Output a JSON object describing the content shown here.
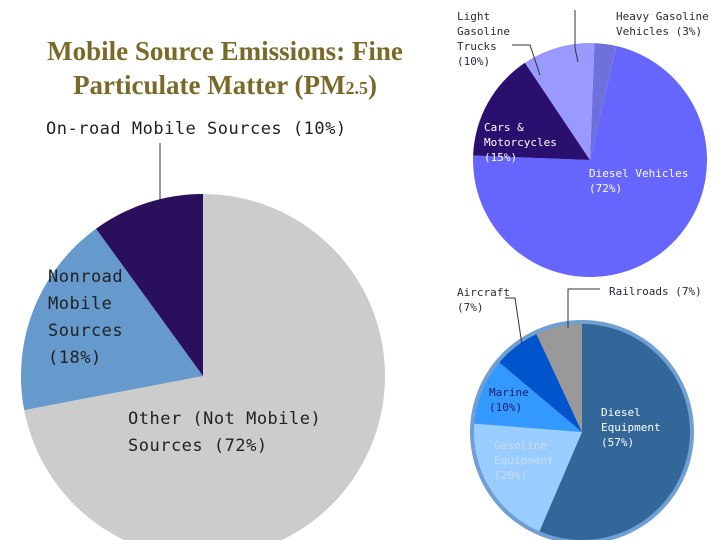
{
  "title": {
    "line1": "Mobile Source Emissions: Fine",
    "line2": "Particulate Matter (PM",
    "sub": "2.5",
    "close": ")"
  },
  "chart_data": [
    {
      "type": "pie",
      "title": "",
      "slices": [
        {
          "label": "On-road Mobile Sources (10%)",
          "value": 10,
          "color": "#2a0f5c"
        },
        {
          "label": "Nonroad\nMobile\nSources\n(18%)",
          "value": 18,
          "color": "#6699cc"
        },
        {
          "label": "Other (Not Mobile)\nSources (72%)",
          "value": 72,
          "color": "#cccccc"
        }
      ]
    },
    {
      "type": "pie",
      "title": "",
      "slices": [
        {
          "label": "Diesel Vehicles\n(72%)",
          "value": 72,
          "color": "#6666ff"
        },
        {
          "label": "Cars &\nMotorcycles\n(15%)",
          "value": 15,
          "color": "#2a0f6e"
        },
        {
          "label": "Light\nGasoline\nTrucks\n(10%)",
          "value": 10,
          "color": "#9999ff"
        },
        {
          "label": "Heavy Gasoline\nVehicles (3%)",
          "value": 3,
          "color": "#7070dd"
        }
      ]
    },
    {
      "type": "pie",
      "title": "",
      "slices": [
        {
          "label": "Diesel\nEquipment\n(57%)",
          "value": 57,
          "color": "#336699"
        },
        {
          "label": "Gasoline\nEquipment\n(20%)",
          "value": 20,
          "color": "#99ccff"
        },
        {
          "label": "Marine\n(10%)",
          "value": 10,
          "color": "#3399ff"
        },
        {
          "label": "Aircraft\n(7%)",
          "value": 7,
          "color": "#0055cc"
        },
        {
          "label": "Railroads (7%)",
          "value": 7,
          "color": "#999999"
        }
      ]
    }
  ]
}
